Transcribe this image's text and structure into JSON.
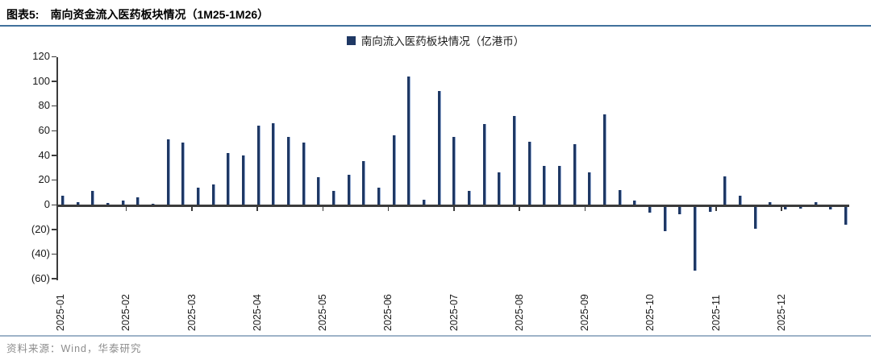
{
  "header": {
    "label": "图表5:",
    "title": "南向资金流入医药板块情况（1M25-1M26）"
  },
  "legend": {
    "marker_color": "#1F3864",
    "label": "南向流入医药板块情况（亿港币）"
  },
  "footer": {
    "source": "资料来源：Wind，华泰研究"
  },
  "chart_data": {
    "type": "bar",
    "title": "南向流入医药板块情况（亿港币）",
    "x_unit": "week",
    "x_labels": [
      "2025-01",
      "2025-02",
      "2025-03",
      "2025-04",
      "2025-05",
      "2025-06",
      "2025-07",
      "2025-08",
      "2025-09",
      "2025-10",
      "2025-11",
      "2025-12"
    ],
    "y_ticks": [
      120,
      100,
      80,
      60,
      40,
      20,
      0,
      -20,
      -40,
      -60
    ],
    "y_tick_labels": [
      "120",
      "100",
      "80",
      "60",
      "40",
      "20",
      "0",
      "(20)",
      "(40)",
      "(60)"
    ],
    "ylim": [
      -60,
      120
    ],
    "grid": false,
    "legend_position": "top-center",
    "bar_color": "#1F3864",
    "values": [
      7,
      2,
      11,
      1.5,
      3,
      6,
      0.5,
      53,
      50,
      14,
      16,
      42,
      40,
      64,
      66,
      55,
      50,
      22,
      11,
      24,
      35,
      14,
      56,
      104,
      4,
      92,
      55,
      11,
      65,
      26,
      72,
      51,
      31,
      31,
      49,
      26,
      73,
      12,
      3,
      -5,
      -20,
      -6,
      -52,
      -4,
      23,
      7,
      -18,
      2,
      -2,
      -1.5,
      2,
      -2.5,
      -15
    ]
  }
}
